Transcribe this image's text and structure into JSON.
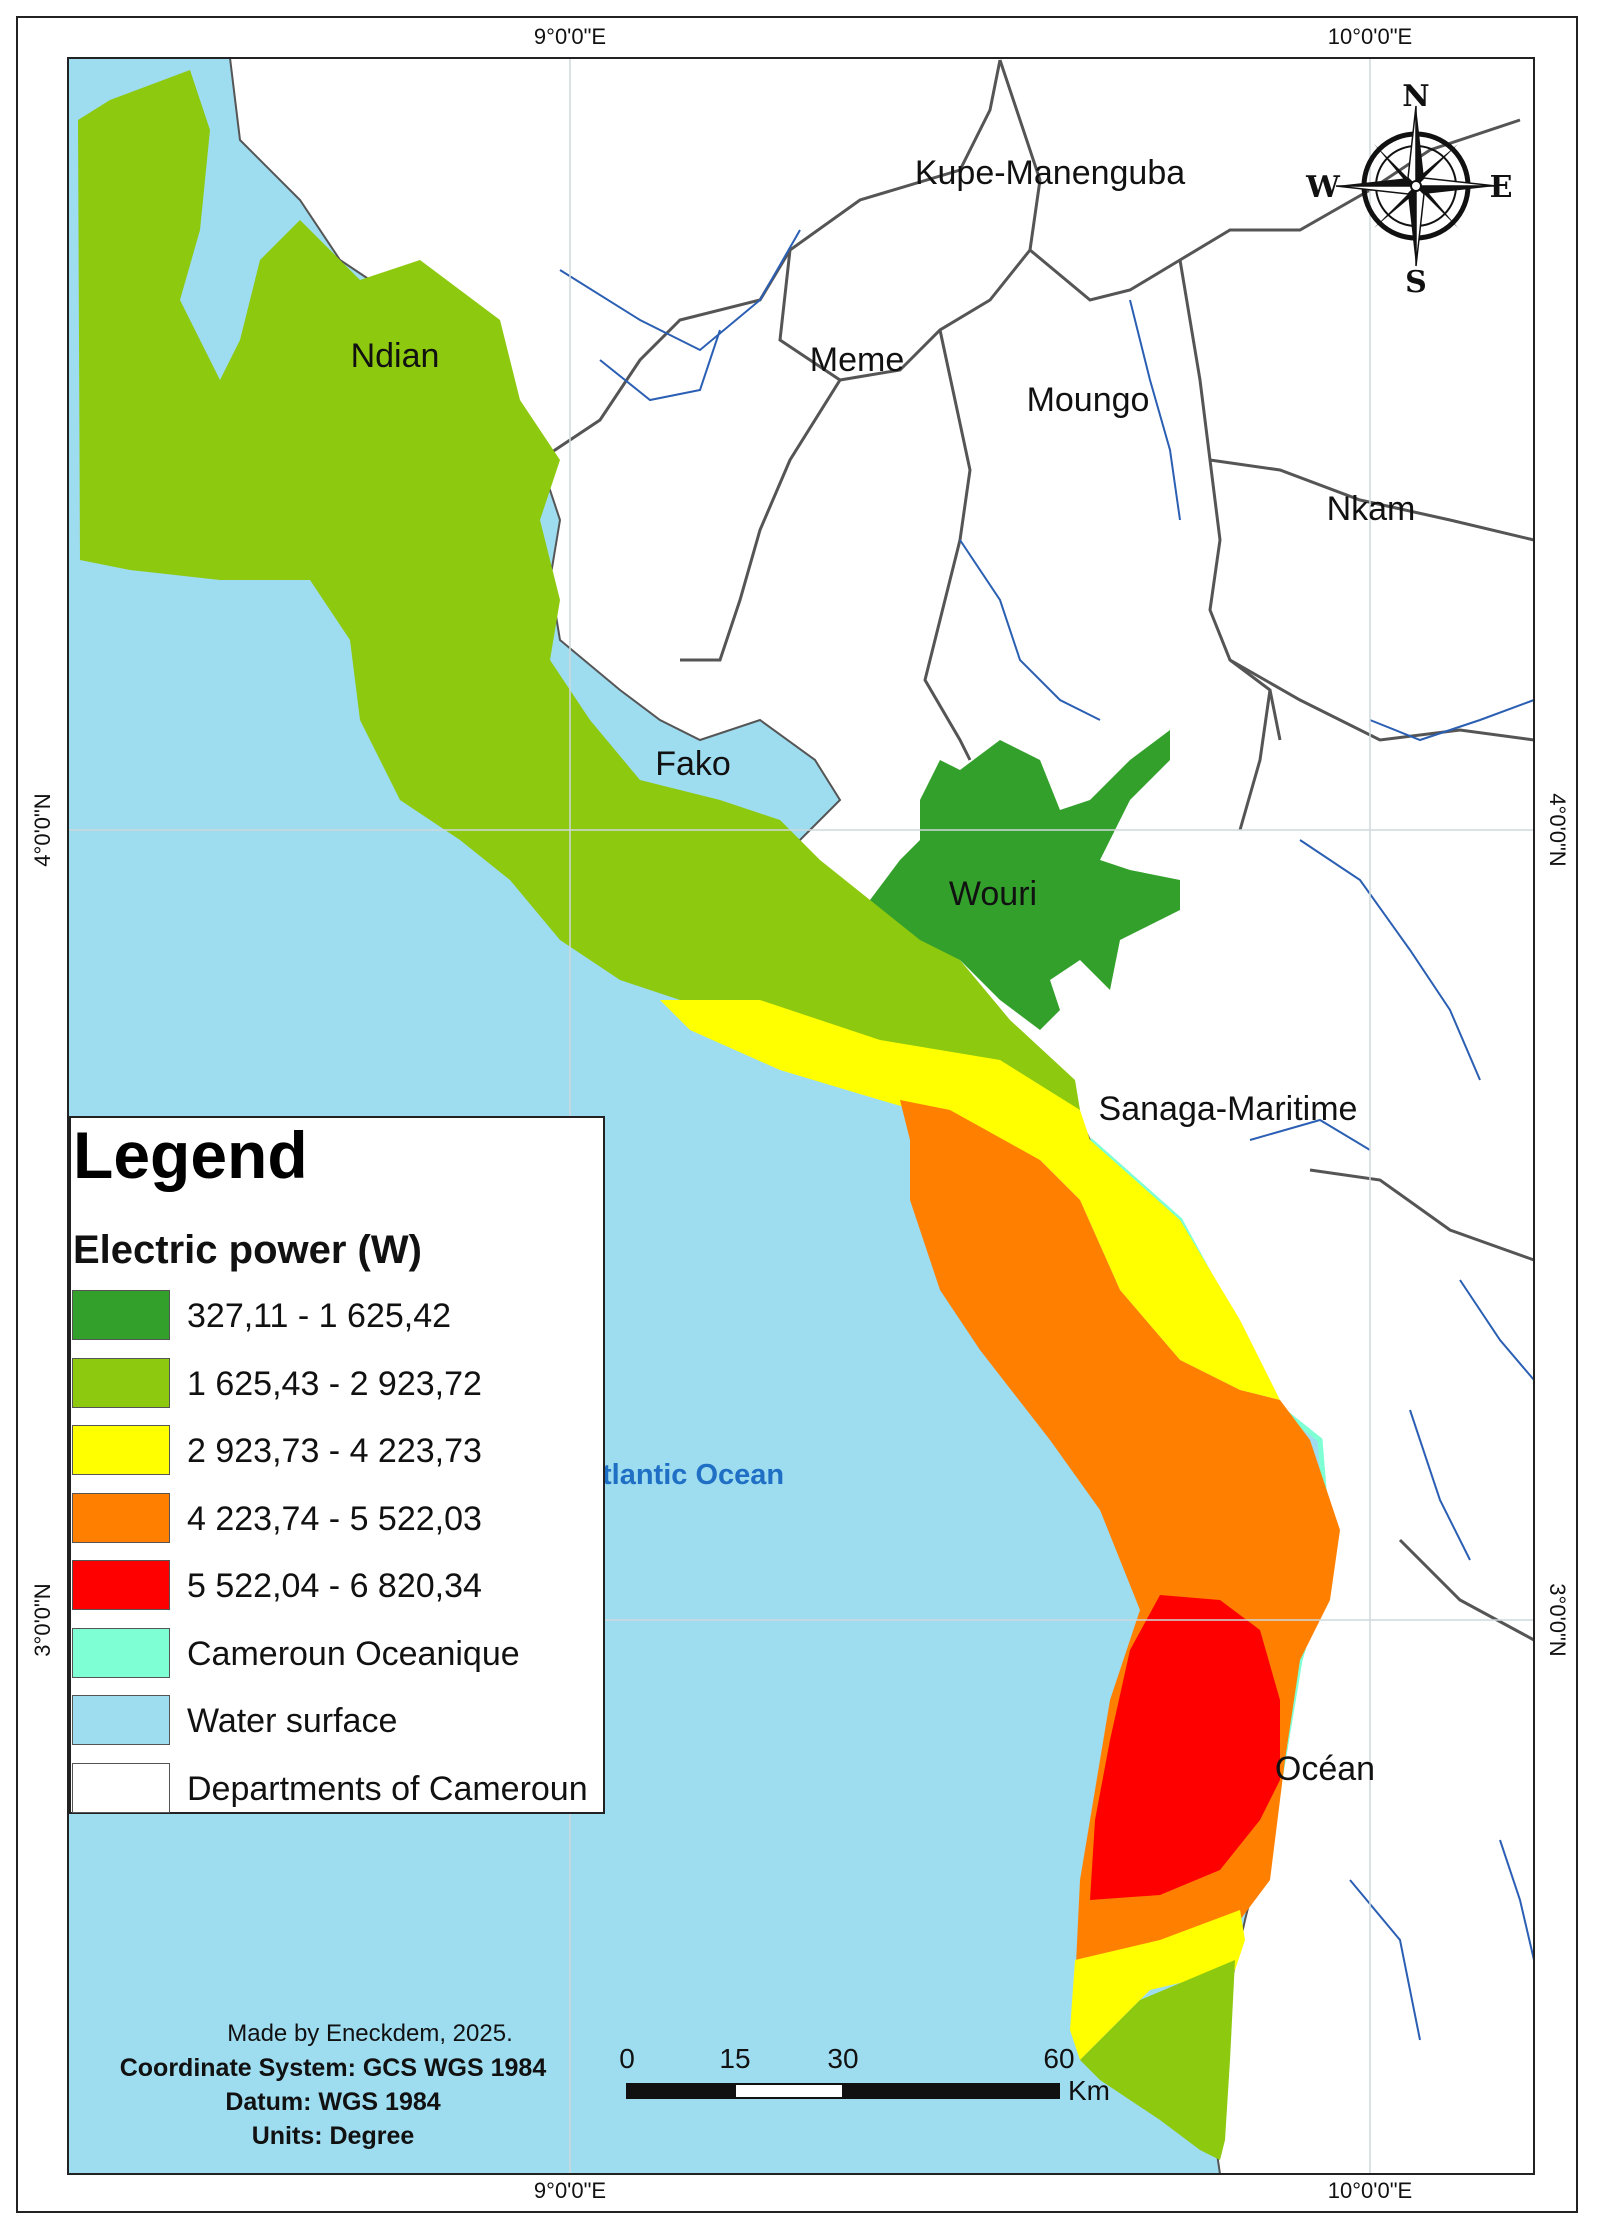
{
  "grid": {
    "lon_labels": [
      "9°0'0\"E",
      "10°0'0\"E"
    ],
    "lat_labels": [
      "4°0'0\"N",
      "3°0'0\"N"
    ]
  },
  "departments": [
    "Kupe-Manenguba",
    "Ndian",
    "Meme",
    "Moungo",
    "Nkam",
    "Fako",
    "Wouri",
    "Sanaga-Maritime",
    "Océan"
  ],
  "ocean_label": "tlantic Ocean",
  "compass": {
    "n": "N",
    "s": "S",
    "e": "E",
    "w": "W"
  },
  "legend": {
    "title": "Legend",
    "subtitle": "Electric power (W)",
    "items": [
      {
        "label": "327,11 - 1 625,42",
        "color": "#33a02c"
      },
      {
        "label": "1 625,43 - 2 923,72",
        "color": "#8dc90e"
      },
      {
        "label": "2 923,73 - 4 223,73",
        "color": "#ffff00"
      },
      {
        "label": "4 223,74 - 5 522,03",
        "color": "#ff8000"
      },
      {
        "label": "5 522,04 - 6 820,34",
        "color": "#ff0000"
      },
      {
        "label": "Cameroun Oceanique",
        "color": "#7fffd4"
      },
      {
        "label": "Water surface",
        "color": "#9edcf0"
      },
      {
        "label": "Departments of Cameroun",
        "color": "#ffffff"
      }
    ]
  },
  "scale_bar": {
    "ticks": [
      "0",
      "15",
      "30",
      "60"
    ],
    "unit": "Km"
  },
  "credits": {
    "made_by": "Made by Eneckdem, 2025.",
    "coord_system": "Coordinate System: GCS WGS 1984",
    "datum": "Datum: WGS 1984",
    "units": "Units: Degree"
  },
  "colors": {
    "water": "#9edcf0",
    "land": "#ffffff",
    "border": "#555555",
    "river": "#2b5fb3"
  }
}
